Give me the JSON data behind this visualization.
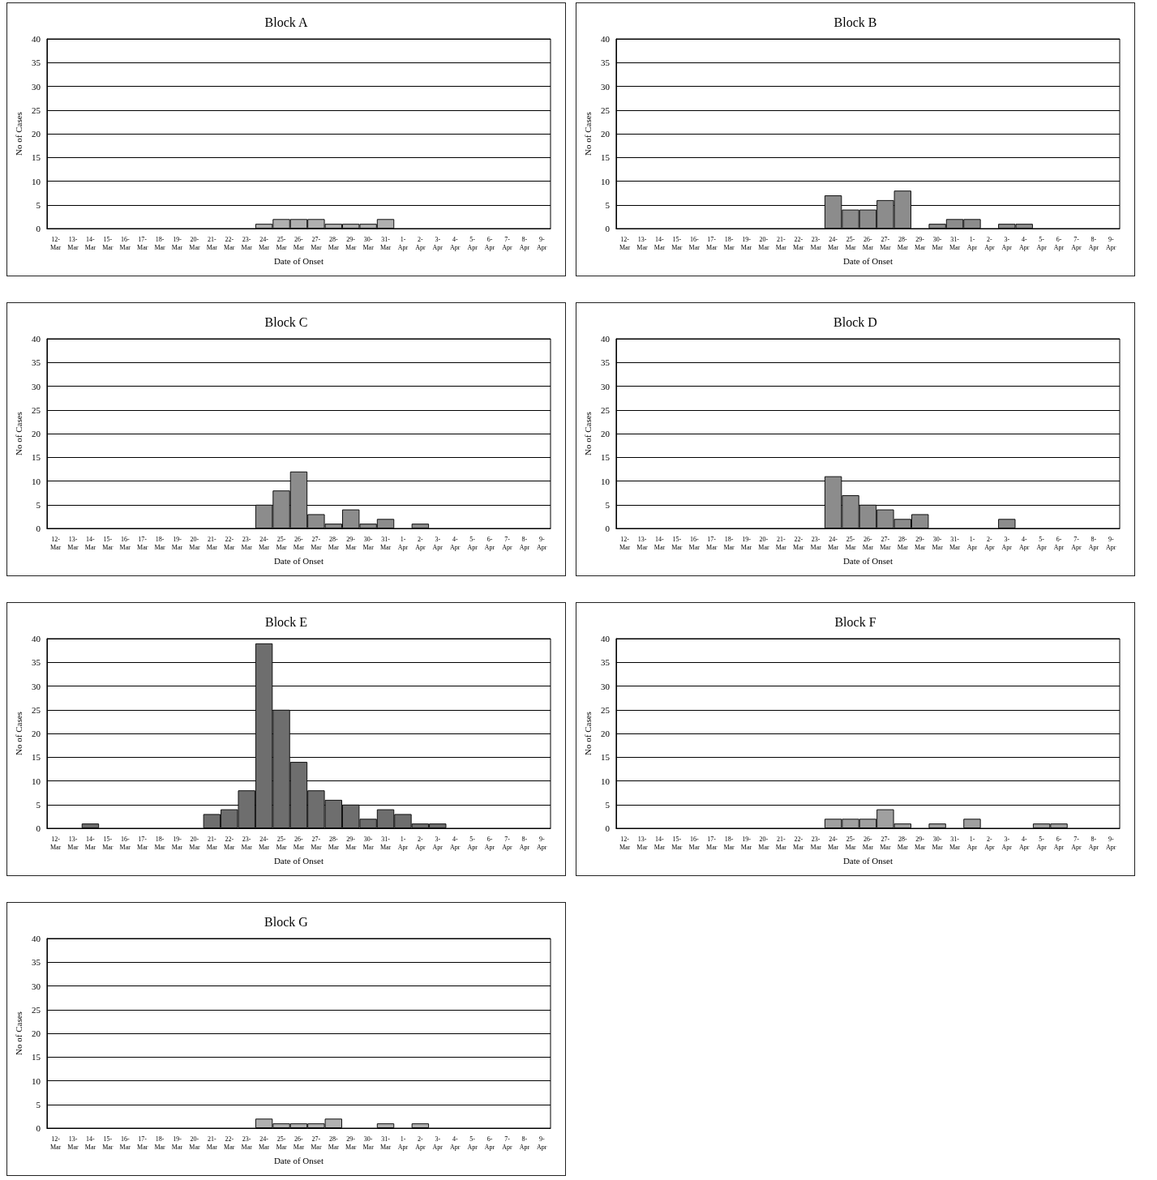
{
  "chart_data": [
    {
      "type": "bar",
      "title": "Block A",
      "xlabel": "Date of Onset",
      "ylabel": "No of Cases",
      "categories": [
        "12-Mar",
        "13-Mar",
        "14-Mar",
        "15-Mar",
        "16-Mar",
        "17-Mar",
        "18-Mar",
        "19-Mar",
        "20-Mar",
        "21-Mar",
        "22-Mar",
        "23-Mar",
        "24-Mar",
        "25-Mar",
        "26-Mar",
        "27-Mar",
        "28-Mar",
        "29-Mar",
        "30-Mar",
        "31-Mar",
        "1-Apr",
        "2-Apr",
        "3-Apr",
        "4-Apr",
        "5-Apr",
        "6-Apr",
        "7-Apr",
        "8-Apr",
        "9-Apr"
      ],
      "values": [
        0,
        0,
        0,
        0,
        0,
        0,
        0,
        0,
        0,
        0,
        0,
        0,
        1,
        2,
        2,
        2,
        1,
        1,
        1,
        2,
        0,
        0,
        0,
        0,
        0,
        0,
        0,
        0,
        0
      ],
      "color": "#b0b0b0",
      "ylim": [
        0,
        40
      ],
      "yticks": [
        0,
        5,
        10,
        15,
        20,
        25,
        30,
        35,
        40
      ],
      "grid": "y"
    },
    {
      "type": "bar",
      "title": "Block B",
      "xlabel": "Date of Onset",
      "ylabel": "No of Cases",
      "categories": [
        "12-Mar",
        "13-Mar",
        "14-Mar",
        "15-Mar",
        "16-Mar",
        "17-Mar",
        "18-Mar",
        "19-Mar",
        "20-Mar",
        "21-Mar",
        "22-Mar",
        "23-Mar",
        "24-Mar",
        "25-Mar",
        "26-Mar",
        "27-Mar",
        "28-Mar",
        "29-Mar",
        "30-Mar",
        "31-Mar",
        "1-Apr",
        "2-Apr",
        "3-Apr",
        "4-Apr",
        "5-Apr",
        "6-Apr",
        "7-Apr",
        "8-Apr",
        "9-Apr"
      ],
      "values": [
        0,
        0,
        0,
        0,
        0,
        0,
        0,
        0,
        0,
        0,
        0,
        0,
        7,
        4,
        4,
        6,
        8,
        0,
        1,
        2,
        2,
        0,
        1,
        1,
        0,
        0,
        0,
        0,
        0
      ],
      "color": "#8c8c8c",
      "ylim": [
        0,
        40
      ],
      "yticks": [
        0,
        5,
        10,
        15,
        20,
        25,
        30,
        35,
        40
      ],
      "grid": "y"
    },
    {
      "type": "bar",
      "title": "Block C",
      "xlabel": "Date of Onset",
      "ylabel": "No of Cases",
      "categories": [
        "12-Mar",
        "13-Mar",
        "14-Mar",
        "15-Mar",
        "16-Mar",
        "17-Mar",
        "18-Mar",
        "19-Mar",
        "20-Mar",
        "21-Mar",
        "22-Mar",
        "23-Mar",
        "24-Mar",
        "25-Mar",
        "26-Mar",
        "27-Mar",
        "28-Mar",
        "29-Mar",
        "30-Mar",
        "31-Mar",
        "1-Apr",
        "2-Apr",
        "3-Apr",
        "4-Apr",
        "5-Apr",
        "6-Apr",
        "7-Apr",
        "8-Apr",
        "9-Apr"
      ],
      "values": [
        0,
        0,
        0,
        0,
        0,
        0,
        0,
        0,
        0,
        0,
        0,
        0,
        5,
        8,
        12,
        3,
        1,
        4,
        1,
        2,
        0,
        1,
        0,
        0,
        0,
        0,
        0,
        0,
        0
      ],
      "color": "#8c8c8c",
      "ylim": [
        0,
        40
      ],
      "yticks": [
        0,
        5,
        10,
        15,
        20,
        25,
        30,
        35,
        40
      ],
      "grid": "y"
    },
    {
      "type": "bar",
      "title": "Block D",
      "xlabel": "Date of Onset",
      "ylabel": "No of Cases",
      "categories": [
        "12-Mar",
        "13-Mar",
        "14-Mar",
        "15-Mar",
        "16-Mar",
        "17-Mar",
        "18-Mar",
        "19-Mar",
        "20-Mar",
        "21-Mar",
        "22-Mar",
        "23-Mar",
        "24-Mar",
        "25-Mar",
        "26-Mar",
        "27-Mar",
        "28-Mar",
        "29-Mar",
        "30-Mar",
        "31-Mar",
        "1-Apr",
        "2-Apr",
        "3-Apr",
        "4-Apr",
        "5-Apr",
        "6-Apr",
        "7-Apr",
        "8-Apr",
        "9-Apr"
      ],
      "values": [
        0,
        0,
        0,
        0,
        0,
        0,
        0,
        0,
        0,
        0,
        0,
        0,
        11,
        7,
        5,
        4,
        2,
        3,
        0,
        0,
        0,
        0,
        2,
        0,
        0,
        0,
        0,
        0,
        0
      ],
      "color": "#8c8c8c",
      "ylim": [
        0,
        40
      ],
      "yticks": [
        0,
        5,
        10,
        15,
        20,
        25,
        30,
        35,
        40
      ],
      "grid": "y"
    },
    {
      "type": "bar",
      "title": "Block E",
      "xlabel": "Date of Onset",
      "ylabel": "No of Cases",
      "categories": [
        "12-Mar",
        "13-Mar",
        "14-Mar",
        "15-Mar",
        "16-Mar",
        "17-Mar",
        "18-Mar",
        "19-Mar",
        "20-Mar",
        "21-Mar",
        "22-Mar",
        "23-Mar",
        "24-Mar",
        "25-Mar",
        "26-Mar",
        "27-Mar",
        "28-Mar",
        "29-Mar",
        "30-Mar",
        "31-Mar",
        "1-Apr",
        "2-Apr",
        "3-Apr",
        "4-Apr",
        "5-Apr",
        "6-Apr",
        "7-Apr",
        "8-Apr",
        "9-Apr"
      ],
      "values": [
        0,
        0,
        1,
        0,
        0,
        0,
        0,
        0,
        0,
        3,
        4,
        8,
        39,
        25,
        14,
        8,
        6,
        5,
        2,
        4,
        3,
        1,
        1,
        0,
        0,
        0,
        0,
        0,
        0
      ],
      "color": "#6e6e6e",
      "ylim": [
        0,
        40
      ],
      "yticks": [
        0,
        5,
        10,
        15,
        20,
        25,
        30,
        35,
        40
      ],
      "grid": "y"
    },
    {
      "type": "bar",
      "title": "Block F",
      "xlabel": "Date of Onset",
      "ylabel": "No of Cases",
      "categories": [
        "12-Mar",
        "13-Mar",
        "14-Mar",
        "15-Mar",
        "16-Mar",
        "17-Mar",
        "18-Mar",
        "19-Mar",
        "20-Mar",
        "21-Mar",
        "22-Mar",
        "23-Mar",
        "24-Mar",
        "25-Mar",
        "26-Mar",
        "27-Mar",
        "28-Mar",
        "29-Mar",
        "30-Mar",
        "31-Mar",
        "1-Apr",
        "2-Apr",
        "3-Apr",
        "4-Apr",
        "5-Apr",
        "6-Apr",
        "7-Apr",
        "8-Apr",
        "9-Apr"
      ],
      "values": [
        0,
        0,
        0,
        0,
        0,
        0,
        0,
        0,
        0,
        0,
        0,
        0,
        2,
        2,
        2,
        4,
        1,
        0,
        1,
        0,
        2,
        0,
        0,
        0,
        1,
        1,
        0,
        0,
        0
      ],
      "color": "#a0a0a0",
      "ylim": [
        0,
        40
      ],
      "yticks": [
        0,
        5,
        10,
        15,
        20,
        25,
        30,
        35,
        40
      ],
      "grid": "y"
    },
    {
      "type": "bar",
      "title": "Block G",
      "xlabel": "Date of Onset",
      "ylabel": "No of Cases",
      "categories": [
        "12-Mar",
        "13-Mar",
        "14-Mar",
        "15-Mar",
        "16-Mar",
        "17-Mar",
        "18-Mar",
        "19-Mar",
        "20-Mar",
        "21-Mar",
        "22-Mar",
        "23-Mar",
        "24-Mar",
        "25-Mar",
        "26-Mar",
        "27-Mar",
        "28-Mar",
        "29-Mar",
        "30-Mar",
        "31-Mar",
        "1-Apr",
        "2-Apr",
        "3-Apr",
        "4-Apr",
        "5-Apr",
        "6-Apr",
        "7-Apr",
        "8-Apr",
        "9-Apr"
      ],
      "values": [
        0,
        0,
        0,
        0,
        0,
        0,
        0,
        0,
        0,
        0,
        0,
        0,
        2,
        1,
        1,
        1,
        2,
        0,
        0,
        1,
        0,
        1,
        0,
        0,
        0,
        0,
        0,
        0,
        0
      ],
      "color": "#b0b0b0",
      "ylim": [
        0,
        40
      ],
      "yticks": [
        0,
        5,
        10,
        15,
        20,
        25,
        30,
        35,
        40
      ],
      "grid": "y"
    }
  ]
}
